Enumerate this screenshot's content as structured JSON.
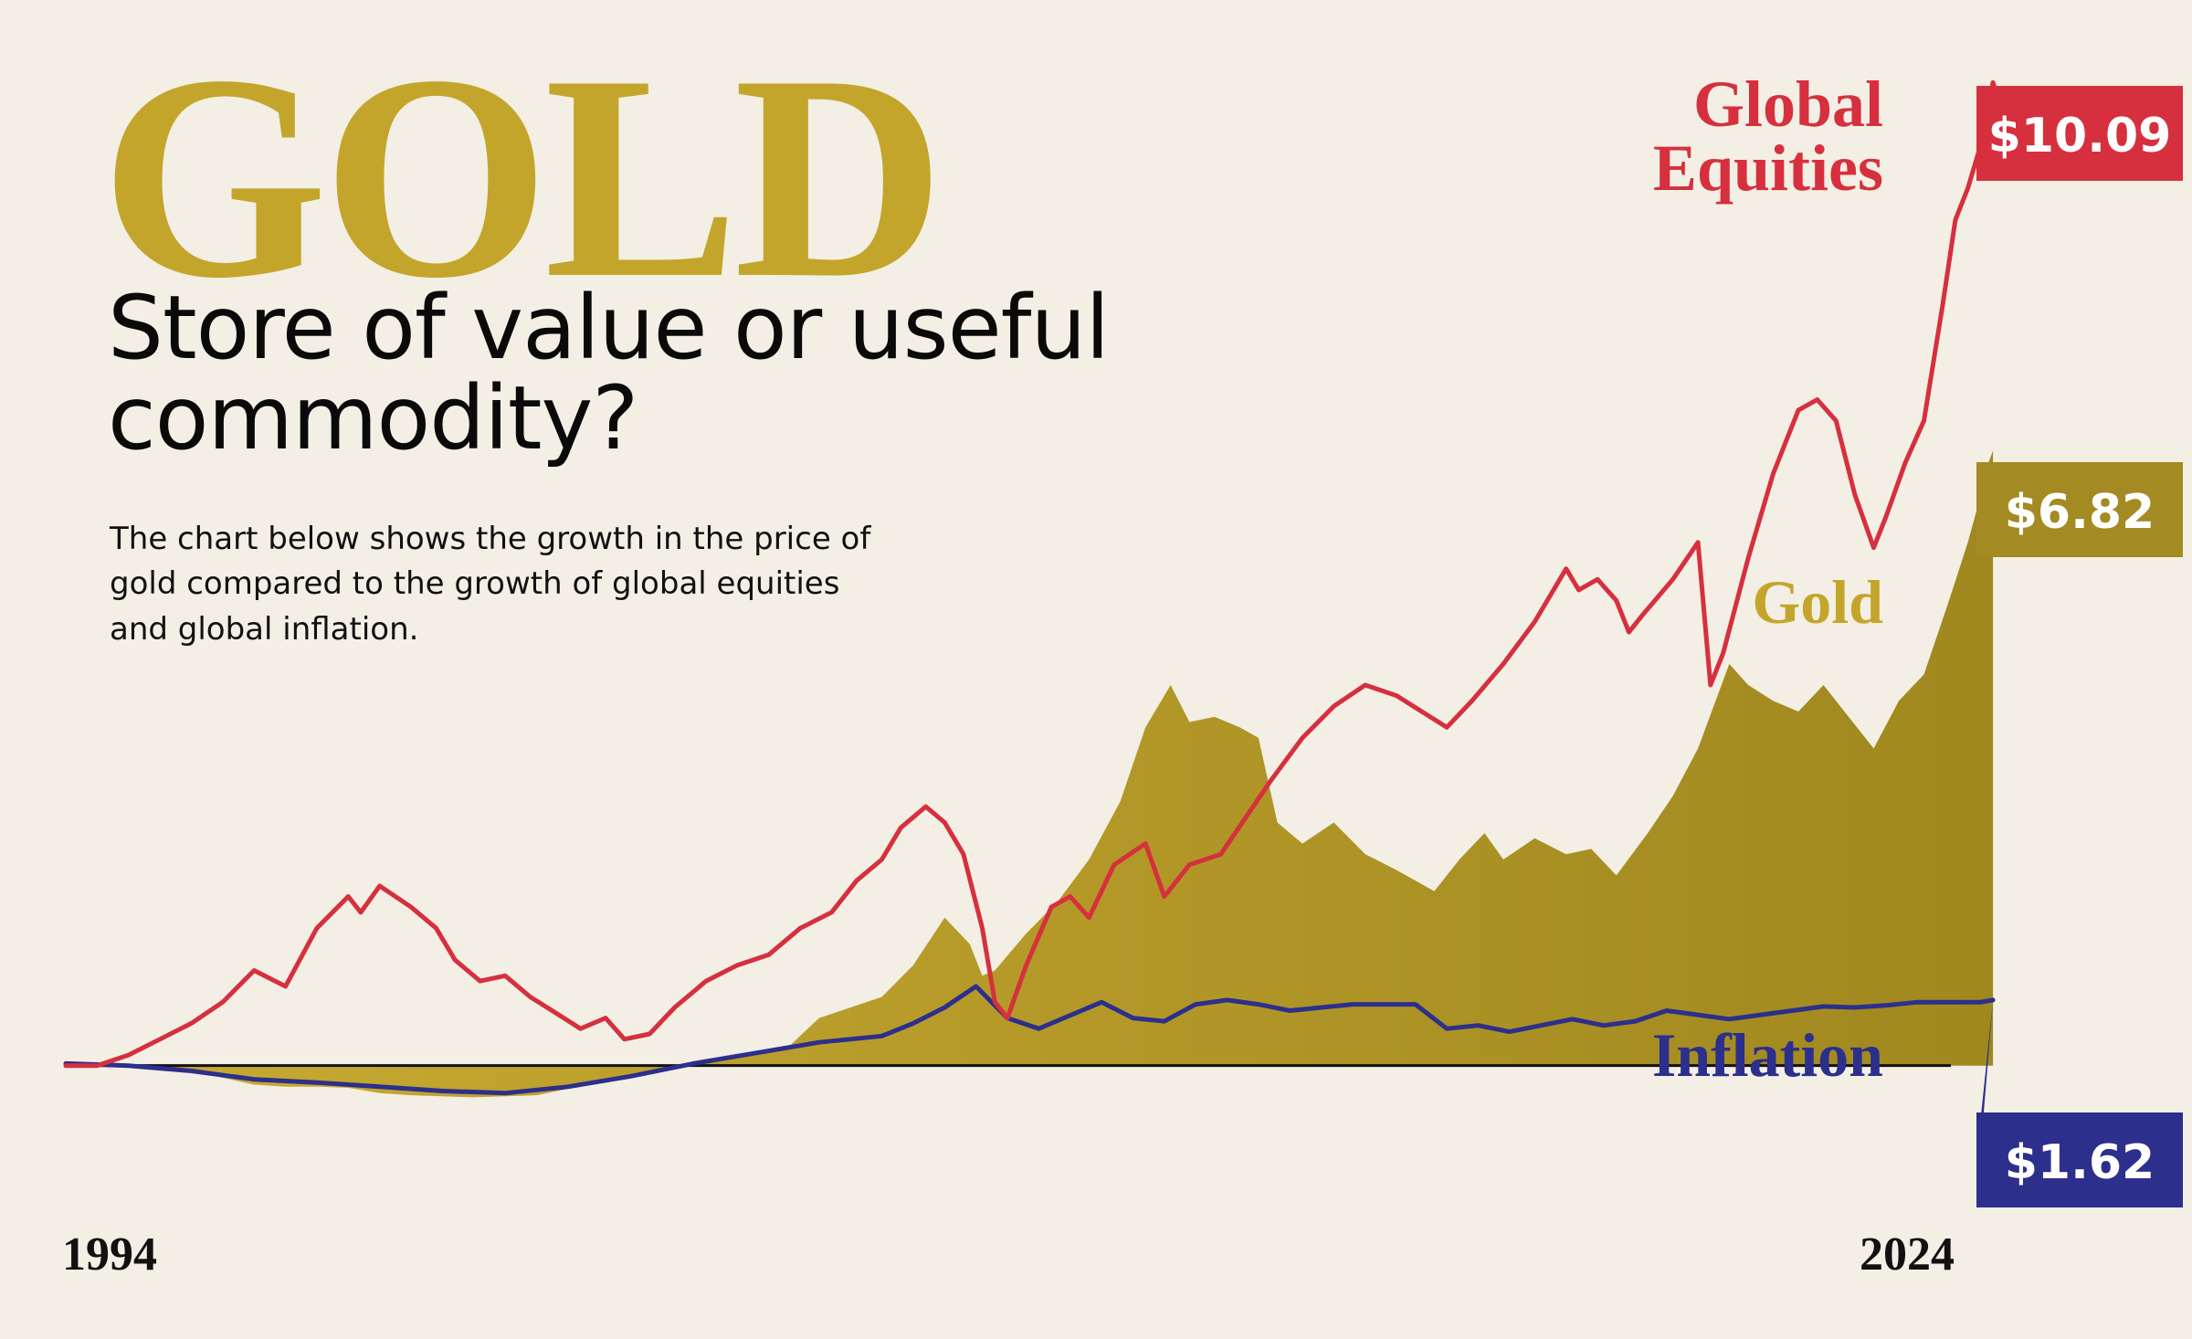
{
  "header": {
    "brand": "GOLD",
    "headline": "Store of value or useful commodity?",
    "description": "The chart below shows the growth in the price of gold compared to the growth of global equities and global inflation."
  },
  "colors": {
    "background": "#f3efe5",
    "gold": "#c4a52c",
    "gold_dark": "#a38a22",
    "equities": "#d6303e",
    "inflation": "#2c2f8c",
    "baseline": "#111111"
  },
  "chart_data": {
    "type": "line",
    "x_start": "1994",
    "x_end": "2024",
    "x_tick_labels": [
      "1994",
      "2024"
    ],
    "xlim": [
      1994,
      2024
    ],
    "ylim": [
      -0.1,
      10.7
    ],
    "baseline": 1,
    "grid": false,
    "series": [
      {
        "name": "Global Equities",
        "label_lines": [
          "Global",
          "Equities"
        ],
        "end_label": "$10.09",
        "final_value": 10.09,
        "style": "line",
        "color": "#d6303e",
        "points": [
          [
            1994.0,
            1.0
          ],
          [
            1994.5,
            1.0
          ],
          [
            1995.0,
            1.1
          ],
          [
            1995.5,
            1.25
          ],
          [
            1996.0,
            1.4
          ],
          [
            1996.5,
            1.6
          ],
          [
            1997.0,
            1.9
          ],
          [
            1997.5,
            1.75
          ],
          [
            1998.0,
            2.3
          ],
          [
            1998.5,
            2.6
          ],
          [
            1998.7,
            2.45
          ],
          [
            1999.0,
            2.7
          ],
          [
            1999.5,
            2.5
          ],
          [
            1999.9,
            2.3
          ],
          [
            2000.2,
            2.0
          ],
          [
            2000.6,
            1.8
          ],
          [
            2001.0,
            1.85
          ],
          [
            2001.4,
            1.65
          ],
          [
            2001.8,
            1.5
          ],
          [
            2002.2,
            1.35
          ],
          [
            2002.6,
            1.45
          ],
          [
            2002.9,
            1.25
          ],
          [
            2003.3,
            1.3
          ],
          [
            2003.7,
            1.55
          ],
          [
            2004.2,
            1.8
          ],
          [
            2004.7,
            1.95
          ],
          [
            2005.2,
            2.05
          ],
          [
            2005.7,
            2.3
          ],
          [
            2006.2,
            2.45
          ],
          [
            2006.6,
            2.75
          ],
          [
            2007.0,
            2.95
          ],
          [
            2007.3,
            3.25
          ],
          [
            2007.7,
            3.45
          ],
          [
            2008.0,
            3.3
          ],
          [
            2008.3,
            3.0
          ],
          [
            2008.6,
            2.3
          ],
          [
            2008.8,
            1.6
          ],
          [
            2009.0,
            1.45
          ],
          [
            2009.3,
            1.95
          ],
          [
            2009.7,
            2.5
          ],
          [
            2010.0,
            2.6
          ],
          [
            2010.3,
            2.4
          ],
          [
            2010.7,
            2.9
          ],
          [
            2011.2,
            3.1
          ],
          [
            2011.5,
            2.6
          ],
          [
            2011.9,
            2.9
          ],
          [
            2012.4,
            3.0
          ],
          [
            2012.8,
            3.35
          ],
          [
            2013.2,
            3.7
          ],
          [
            2013.7,
            4.1
          ],
          [
            2014.2,
            4.4
          ],
          [
            2014.7,
            4.6
          ],
          [
            2015.2,
            4.5
          ],
          [
            2015.6,
            4.35
          ],
          [
            2016.0,
            4.2
          ],
          [
            2016.4,
            4.45
          ],
          [
            2016.9,
            4.8
          ],
          [
            2017.4,
            5.2
          ],
          [
            2017.9,
            5.7
          ],
          [
            2018.1,
            5.5
          ],
          [
            2018.4,
            5.6
          ],
          [
            2018.7,
            5.4
          ],
          [
            2018.9,
            5.1
          ],
          [
            2019.1,
            5.25
          ],
          [
            2019.6,
            5.6
          ],
          [
            2020.0,
            5.95
          ],
          [
            2020.2,
            4.6
          ],
          [
            2020.4,
            4.9
          ],
          [
            2020.8,
            5.8
          ],
          [
            2021.2,
            6.6
          ],
          [
            2021.6,
            7.2
          ],
          [
            2021.9,
            7.3
          ],
          [
            2022.2,
            7.1
          ],
          [
            2022.5,
            6.4
          ],
          [
            2022.8,
            5.9
          ],
          [
            2023.0,
            6.2
          ],
          [
            2023.3,
            6.7
          ],
          [
            2023.6,
            7.1
          ],
          [
            2023.9,
            8.2
          ],
          [
            2024.1,
            9.0
          ],
          [
            2024.3,
            9.3
          ],
          [
            2024.5,
            9.7
          ],
          [
            2024.7,
            10.3
          ],
          [
            2024.8,
            10.09
          ]
        ]
      },
      {
        "name": "Gold",
        "label": "Gold",
        "end_label": "$6.82",
        "final_value": 6.82,
        "style": "area",
        "color": "#c4a52c",
        "points": [
          [
            1994.0,
            1.0
          ],
          [
            1995.0,
            0.98
          ],
          [
            1996.0,
            0.95
          ],
          [
            1997.0,
            0.82
          ],
          [
            1997.5,
            0.8
          ],
          [
            1998.0,
            0.8
          ],
          [
            1998.5,
            0.79
          ],
          [
            1999.0,
            0.74
          ],
          [
            1999.5,
            0.72
          ],
          [
            2000.0,
            0.71
          ],
          [
            2000.5,
            0.7
          ],
          [
            2001.0,
            0.71
          ],
          [
            2001.5,
            0.72
          ],
          [
            2002.0,
            0.78
          ],
          [
            2002.5,
            0.85
          ],
          [
            2003.0,
            0.92
          ],
          [
            2003.5,
            0.98
          ],
          [
            2004.0,
            1.04
          ],
          [
            2004.5,
            1.07
          ],
          [
            2005.0,
            1.1
          ],
          [
            2005.5,
            1.17
          ],
          [
            2006.0,
            1.45
          ],
          [
            2006.5,
            1.55
          ],
          [
            2007.0,
            1.65
          ],
          [
            2007.5,
            1.95
          ],
          [
            2008.0,
            2.4
          ],
          [
            2008.4,
            2.15
          ],
          [
            2008.6,
            1.85
          ],
          [
            2008.8,
            1.9
          ],
          [
            2009.3,
            2.25
          ],
          [
            2009.8,
            2.55
          ],
          [
            2010.3,
            2.95
          ],
          [
            2010.8,
            3.5
          ],
          [
            2011.2,
            4.2
          ],
          [
            2011.6,
            4.6
          ],
          [
            2011.9,
            4.25
          ],
          [
            2012.3,
            4.3
          ],
          [
            2012.7,
            4.2
          ],
          [
            2013.0,
            4.1
          ],
          [
            2013.3,
            3.3
          ],
          [
            2013.7,
            3.1
          ],
          [
            2014.2,
            3.3
          ],
          [
            2014.7,
            3.0
          ],
          [
            2015.2,
            2.85
          ],
          [
            2015.8,
            2.65
          ],
          [
            2016.2,
            2.95
          ],
          [
            2016.6,
            3.2
          ],
          [
            2016.9,
            2.95
          ],
          [
            2017.4,
            3.15
          ],
          [
            2017.9,
            3.0
          ],
          [
            2018.3,
            3.05
          ],
          [
            2018.7,
            2.8
          ],
          [
            2019.2,
            3.2
          ],
          [
            2019.6,
            3.55
          ],
          [
            2020.0,
            4.0
          ],
          [
            2020.5,
            4.8
          ],
          [
            2020.8,
            4.6
          ],
          [
            2021.2,
            4.45
          ],
          [
            2021.6,
            4.35
          ],
          [
            2022.0,
            4.6
          ],
          [
            2022.4,
            4.3
          ],
          [
            2022.8,
            4.0
          ],
          [
            2023.2,
            4.45
          ],
          [
            2023.6,
            4.7
          ],
          [
            2024.0,
            5.4
          ],
          [
            2024.3,
            5.95
          ],
          [
            2024.6,
            6.6
          ],
          [
            2024.7,
            6.82
          ]
        ]
      },
      {
        "name": "Inflation",
        "label": "Inflation",
        "end_label": "$1.62",
        "final_value": 1.62,
        "style": "line",
        "color": "#2c2f8c",
        "points": [
          [
            1994.0,
            1.02
          ],
          [
            1995.0,
            1.0
          ],
          [
            1996.0,
            0.95
          ],
          [
            1997.0,
            0.87
          ],
          [
            1998.0,
            0.84
          ],
          [
            1999.0,
            0.8
          ],
          [
            2000.0,
            0.76
          ],
          [
            2001.0,
            0.74
          ],
          [
            2002.0,
            0.8
          ],
          [
            2003.0,
            0.9
          ],
          [
            2004.0,
            1.02
          ],
          [
            2005.0,
            1.12
          ],
          [
            2006.0,
            1.22
          ],
          [
            2007.0,
            1.28
          ],
          [
            2007.5,
            1.4
          ],
          [
            2008.0,
            1.55
          ],
          [
            2008.5,
            1.75
          ],
          [
            2009.0,
            1.45
          ],
          [
            2009.5,
            1.35
          ],
          [
            2010.5,
            1.6
          ],
          [
            2011.0,
            1.45
          ],
          [
            2011.5,
            1.42
          ],
          [
            2012.0,
            1.58
          ],
          [
            2012.5,
            1.62
          ],
          [
            2013.0,
            1.58
          ],
          [
            2013.5,
            1.52
          ],
          [
            2014.5,
            1.58
          ],
          [
            2015.5,
            1.58
          ],
          [
            2016.0,
            1.35
          ],
          [
            2016.5,
            1.38
          ],
          [
            2017.0,
            1.32
          ],
          [
            2018.0,
            1.44
          ],
          [
            2018.5,
            1.38
          ],
          [
            2019.0,
            1.42
          ],
          [
            2019.5,
            1.52
          ],
          [
            2020.0,
            1.48
          ],
          [
            2020.5,
            1.44
          ],
          [
            2021.0,
            1.48
          ],
          [
            2021.5,
            1.52
          ],
          [
            2022.0,
            1.56
          ],
          [
            2022.5,
            1.55
          ],
          [
            2023.0,
            1.57
          ],
          [
            2023.5,
            1.6
          ],
          [
            2024.0,
            1.6
          ],
          [
            2024.5,
            1.6
          ],
          [
            2024.7,
            1.62
          ]
        ]
      }
    ]
  }
}
